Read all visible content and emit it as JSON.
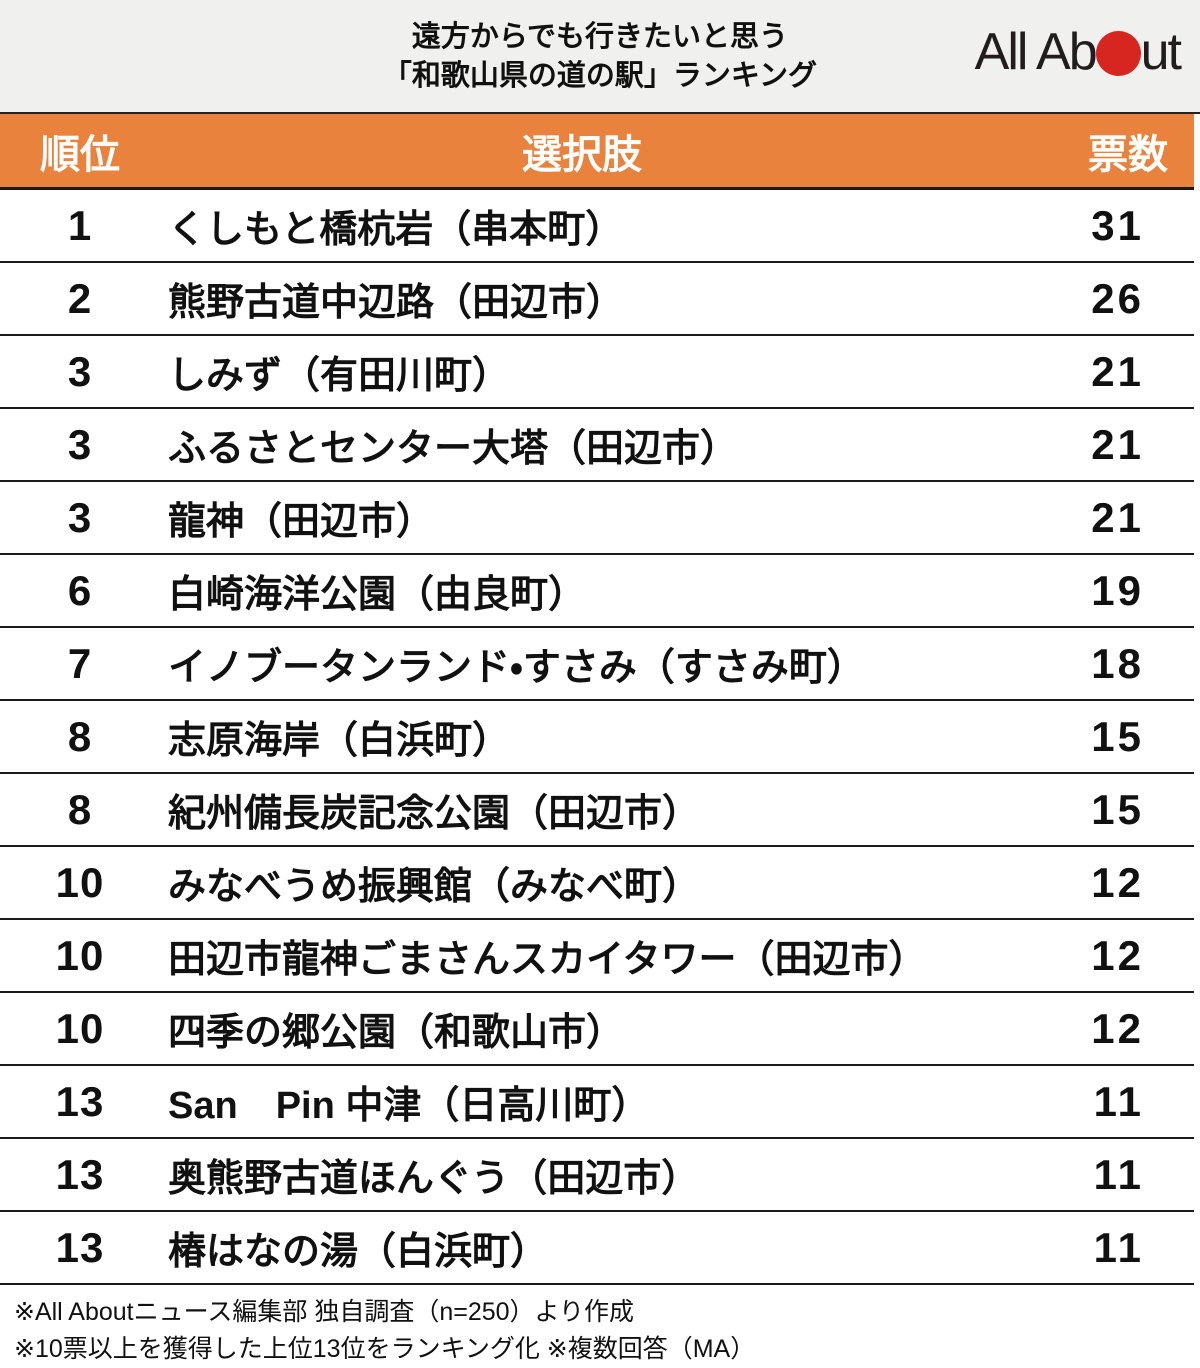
{
  "header": {
    "title_line1": "遠方からでも行きたいと思う",
    "title_line2": "「和歌山県の道の駅」ランキング",
    "logo": {
      "text_left": "All Ab",
      "text_right": "ut",
      "dot_icon": "red-circle"
    }
  },
  "table": {
    "columns": {
      "rank": "順位",
      "choice": "選択肢",
      "votes": "票数"
    },
    "rows": [
      {
        "rank": "1",
        "name": "くしもと橋杭岩（串本町）",
        "votes": "31"
      },
      {
        "rank": "2",
        "name": "熊野古道中辺路（田辺市）",
        "votes": "26"
      },
      {
        "rank": "3",
        "name": "しみず（有田川町）",
        "votes": "21"
      },
      {
        "rank": "3",
        "name": "ふるさとセンター大塔（田辺市）",
        "votes": "21"
      },
      {
        "rank": "3",
        "name": "龍神（田辺市）",
        "votes": "21"
      },
      {
        "rank": "6",
        "name": "白崎海洋公園（由良町）",
        "votes": "19"
      },
      {
        "rank": "7",
        "name": "イノブータンランド・すさみ（すさみ町）",
        "votes": "18"
      },
      {
        "rank": "8",
        "name": "志原海岸（白浜町）",
        "votes": "15"
      },
      {
        "rank": "8",
        "name": "紀州備長炭記念公園（田辺市）",
        "votes": "15"
      },
      {
        "rank": "10",
        "name": "みなべうめ振興館（みなべ町）",
        "votes": "12"
      },
      {
        "rank": "10",
        "name": "田辺市龍神ごまさんスカイタワー（田辺市）",
        "votes": "12"
      },
      {
        "rank": "10",
        "name": "四季の郷公園（和歌山市）",
        "votes": "12"
      },
      {
        "rank": "13",
        "name": "San　Pin 中津（日高川町）",
        "votes": "11"
      },
      {
        "rank": "13",
        "name": "奥熊野古道ほんぐう（田辺市）",
        "votes": "11"
      },
      {
        "rank": "13",
        "name": "椿はなの湯（白浜町）",
        "votes": "11"
      }
    ]
  },
  "footer": {
    "note1": "※All Aboutニュース編集部 独自調査（n=250）より作成",
    "note2": "※10票以上を獲得した上位13位をランキング化 ※複数回答（MA）"
  },
  "colors": {
    "masthead_background": "#F0F0EE",
    "accent_orange": "#E8823C",
    "logo_red": "#D7261F",
    "separator_line": "#1A1A1A",
    "header_text": "#FFFFFF"
  },
  "chart_data": {
    "type": "table",
    "title": "遠方からでも行きたいと思う「和歌山県の道の駅」ランキング",
    "columns": [
      "順位",
      "選択肢",
      "票数"
    ],
    "rows": [
      [
        1,
        "くしもと橋杭岩（串本町）",
        31
      ],
      [
        2,
        "熊野古道中辺路（田辺市）",
        26
      ],
      [
        3,
        "しみず（有田川町）",
        21
      ],
      [
        3,
        "ふるさとセンター大塔（田辺市）",
        21
      ],
      [
        3,
        "龍神（田辺市）",
        21
      ],
      [
        6,
        "白崎海洋公園（由良町）",
        19
      ],
      [
        7,
        "イノブータンランド・すさみ（すさみ町）",
        18
      ],
      [
        8,
        "志原海岸（白浜町）",
        15
      ],
      [
        8,
        "紀州備長炭記念公園（田辺市）",
        15
      ],
      [
        10,
        "みなべうめ振興館（みなべ町）",
        12
      ],
      [
        10,
        "田辺市龍神ごまさんスカイタワー（田辺市）",
        12
      ],
      [
        10,
        "四季の郷公園（和歌山市）",
        12
      ],
      [
        13,
        "San　Pin 中津（日高川町）",
        11
      ],
      [
        13,
        "奥熊野古道ほんぐう（田辺市）",
        11
      ],
      [
        13,
        "椿はなの湯（白浜町）",
        11
      ]
    ],
    "notes": [
      "※All Aboutニュース編集部 独自調査（n=250）より作成",
      "※10票以上を獲得した上位13位をランキング化 ※複数回答（MA）"
    ]
  }
}
